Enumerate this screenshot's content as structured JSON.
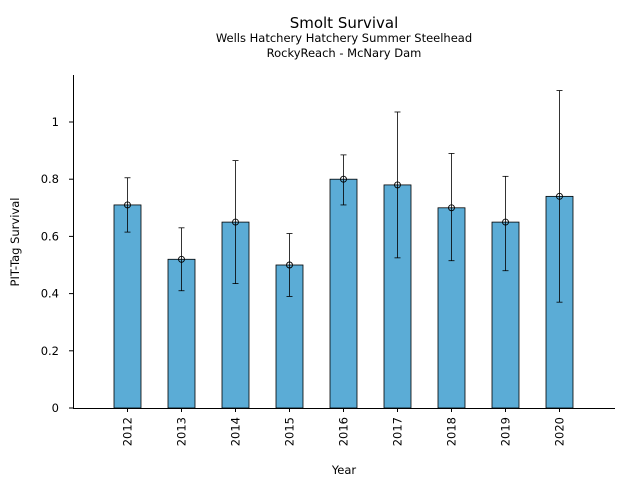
{
  "chart_data": {
    "type": "bar",
    "title": "Smolt Survival",
    "subtitle_lines": [
      "Wells Hatchery Hatchery Summer Steelhead",
      "RockyReach - McNary Dam"
    ],
    "xlabel": "Year",
    "ylabel": "PIT-Tag Survival",
    "categories": [
      "2012",
      "2013",
      "2014",
      "2015",
      "2016",
      "2017",
      "2018",
      "2019",
      "2020"
    ],
    "values": [
      0.71,
      0.52,
      0.65,
      0.5,
      0.8,
      0.78,
      0.7,
      0.65,
      0.74
    ],
    "error_low": [
      0.615,
      0.41,
      0.435,
      0.39,
      0.71,
      0.525,
      0.515,
      0.48,
      0.37
    ],
    "error_high": [
      0.805,
      0.63,
      0.865,
      0.61,
      0.885,
      1.035,
      0.89,
      0.81,
      1.11
    ],
    "ylim": [
      0,
      1.17
    ],
    "yticks": [
      0,
      0.2,
      0.4,
      0.6,
      0.8,
      1
    ],
    "ytick_labels": [
      "0",
      "0.2",
      "0.4",
      "0.6",
      "0.8",
      "1"
    ],
    "bar_color": "#5bacd6",
    "grid": false,
    "legend": false
  }
}
